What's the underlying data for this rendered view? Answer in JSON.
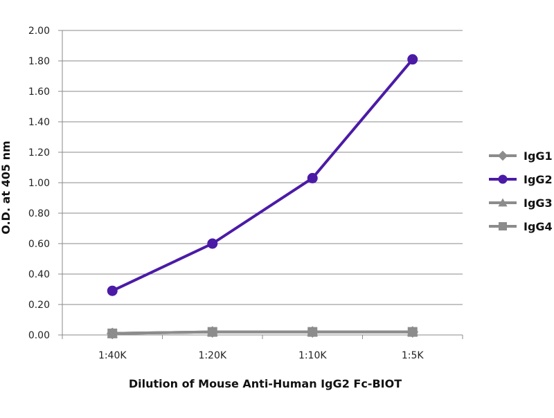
{
  "chart_data": {
    "type": "line",
    "title": "",
    "xlabel": "Dilution of Mouse Anti-Human IgG2 Fc-BIOT",
    "ylabel": "O.D. at 405 nm",
    "categories": [
      "1:40K",
      "1:20K",
      "1:10K",
      "1:5K"
    ],
    "ylim": [
      0,
      2.0
    ],
    "yticks": [
      "0.00",
      "0.20",
      "0.40",
      "0.60",
      "0.80",
      "1.00",
      "1.20",
      "1.40",
      "1.60",
      "1.80",
      "2.00"
    ],
    "grid": true,
    "legend_position": "right",
    "series": [
      {
        "name": "IgG1",
        "values": [
          0.01,
          0.02,
          0.02,
          0.02
        ],
        "color": "#8c8c8c",
        "marker": "diamond"
      },
      {
        "name": "IgG2",
        "values": [
          0.29,
          0.6,
          1.03,
          1.81
        ],
        "color": "#4b1ba6",
        "marker": "circle"
      },
      {
        "name": "IgG3",
        "values": [
          0.01,
          0.02,
          0.02,
          0.02
        ],
        "color": "#8c8c8c",
        "marker": "triangle"
      },
      {
        "name": "IgG4",
        "values": [
          0.01,
          0.02,
          0.02,
          0.02
        ],
        "color": "#8c8c8c",
        "marker": "square"
      }
    ]
  }
}
